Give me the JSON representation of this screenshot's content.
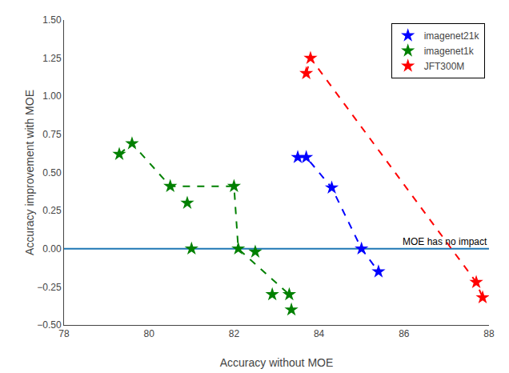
{
  "chart_data": {
    "type": "scatter",
    "xlabel": "Accuracy without MOE",
    "ylabel": "Accuracy improvement with MOE",
    "xlim": [
      78,
      88
    ],
    "ylim": [
      -0.5,
      1.5
    ],
    "xticks": [
      78,
      80,
      82,
      84,
      86,
      88
    ],
    "yticks": [
      {
        "value": -0.5,
        "label": "−0.50"
      },
      {
        "value": -0.25,
        "label": "−0.25"
      },
      {
        "value": 0.0,
        "label": "0.00"
      },
      0.25,
      {
        "value": 0.5,
        "label": "0.50"
      },
      0.75,
      {
        "value": 1.0,
        "label": "1.00"
      },
      1.25,
      {
        "value": 1.5,
        "label": "1.50"
      }
    ],
    "grid": false,
    "legend": "upper right",
    "series": [
      {
        "name": "imagenet21k",
        "color": "#0000ff",
        "marker": "star",
        "line_style": "dashed",
        "x": [
          83.5,
          83.7,
          84.3,
          85.0,
          85.4
        ],
        "values": [
          0.6,
          0.6,
          0.4,
          0.0,
          -0.15
        ],
        "line_x": [
          83.5,
          83.7,
          84.3,
          85.0,
          85.4
        ],
        "line_values": [
          0.6,
          0.6,
          0.4,
          0.0,
          -0.15
        ]
      },
      {
        "name": "imagenet1k",
        "color": "#008000",
        "marker": "star",
        "line_style": "dashed",
        "x": [
          79.3,
          79.6,
          80.5,
          80.9,
          81.0,
          82.0,
          82.1,
          82.5,
          82.9,
          83.3,
          83.35
        ],
        "values": [
          0.62,
          0.69,
          0.41,
          0.3,
          0.0,
          0.41,
          0.0,
          -0.02,
          -0.3,
          -0.3,
          -0.4
        ],
        "line_x": [
          79.3,
          79.6,
          80.5,
          81.0,
          82.0,
          82.1,
          83.3
        ],
        "line_values": [
          0.62,
          0.69,
          0.41,
          0.41,
          0.41,
          0.0,
          -0.3
        ]
      },
      {
        "name": "JFT300M",
        "color": "#ff0000",
        "marker": "star",
        "line_style": "dashed",
        "x": [
          83.7,
          83.8,
          87.7,
          87.85
        ],
        "values": [
          1.15,
          1.25,
          -0.22,
          -0.32
        ],
        "line_x": [
          83.7,
          83.8,
          87.7,
          87.85
        ],
        "line_values": [
          1.15,
          1.25,
          -0.22,
          -0.32
        ]
      }
    ],
    "hline": {
      "y": 0,
      "color": "#1f77b4",
      "label": "MOE has no impact"
    }
  }
}
